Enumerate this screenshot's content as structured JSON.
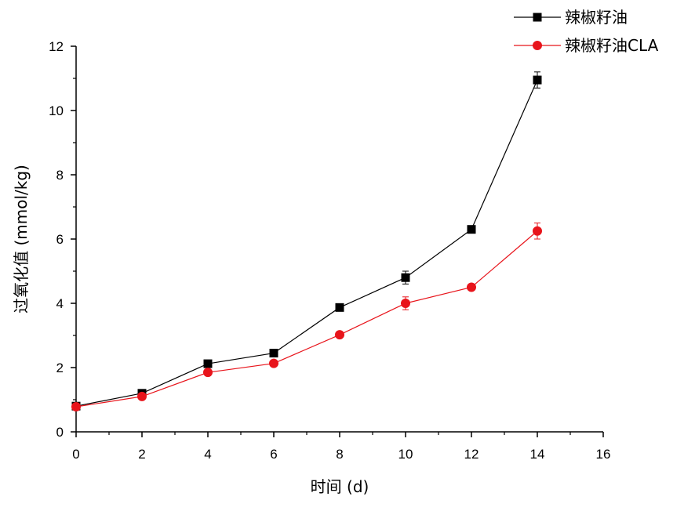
{
  "chart_data": {
    "type": "line",
    "xlabel": "时间 (d)",
    "ylabel": "过氧化值 (mmol/kg)",
    "xlim": [
      0,
      16
    ],
    "ylim": [
      0,
      12
    ],
    "xticks": [
      0,
      2,
      4,
      6,
      8,
      10,
      12,
      14,
      16
    ],
    "yticks": [
      0,
      2,
      4,
      6,
      8,
      10,
      12
    ],
    "x": [
      0,
      2,
      4,
      6,
      8,
      10,
      12,
      14
    ],
    "legend": "top-right",
    "grid": false,
    "series": [
      {
        "name": "辣椒籽油",
        "color": "#000000",
        "marker": "square",
        "values": [
          0.8,
          1.2,
          2.12,
          2.45,
          3.87,
          4.8,
          6.3,
          10.95
        ],
        "errors": [
          0.05,
          0.05,
          0.08,
          0.12,
          0.08,
          0.2,
          0.08,
          0.25
        ]
      },
      {
        "name": "辣椒籽油CLA",
        "color": "#e8141b",
        "marker": "circle",
        "values": [
          0.78,
          1.1,
          1.85,
          2.13,
          3.02,
          4.0,
          4.5,
          6.25
        ],
        "errors": [
          0.05,
          0.05,
          0.1,
          0.08,
          0.06,
          0.2,
          0.08,
          0.25
        ]
      }
    ]
  }
}
